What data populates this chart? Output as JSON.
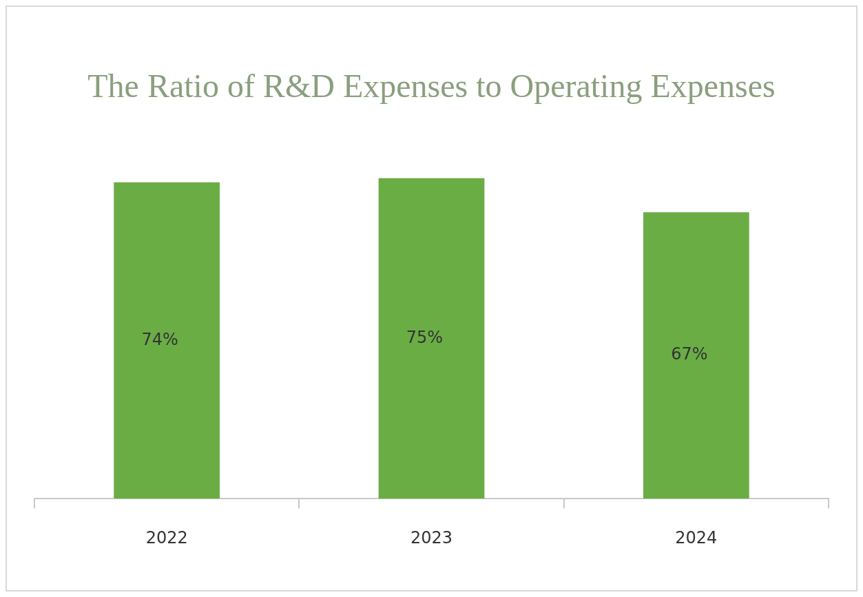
{
  "chart_data": {
    "type": "bar",
    "title": "The Ratio of R&D Expenses to Operating Expenses",
    "categories": [
      "2022",
      "2023",
      "2024"
    ],
    "values": [
      74,
      75,
      67
    ],
    "color": "#6aad45",
    "value_labels": [
      "74%",
      "75%",
      "67%"
    ],
    "legend": false,
    "grid": false,
    "tick_labels": "x"
  }
}
